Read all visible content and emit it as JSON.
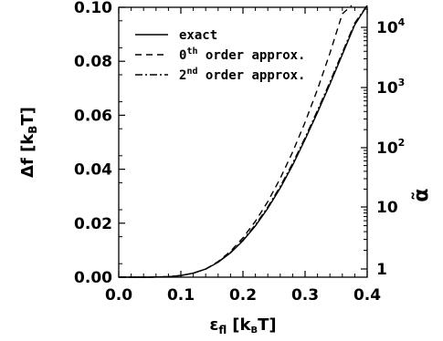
{
  "chart_data": {
    "type": "line",
    "x_axis": {
      "label": {
        "main": "ε",
        "sub": "fl",
        "rest": "[k",
        "rest_sub": "B",
        "rest_end": "T]"
      },
      "range": [
        0.0,
        0.4
      ],
      "ticks": [
        0.0,
        0.1,
        0.2,
        0.3,
        0.4
      ],
      "tick_labels": [
        "0.0",
        "0.1",
        "0.2",
        "0.3",
        "0.4"
      ]
    },
    "y_axis_left": {
      "label": {
        "main": "Δf [k",
        "sub": "B",
        "rest": "T]"
      },
      "range": [
        0.0,
        0.1
      ],
      "ticks": [
        0.0,
        0.02,
        0.04,
        0.06,
        0.08,
        0.1
      ],
      "tick_labels": [
        "0.00",
        "0.02",
        "0.04",
        "0.06",
        "0.08",
        "0.10"
      ]
    },
    "y_axis_right": {
      "label": "α̃",
      "scale": "log",
      "ticks": [
        {
          "value": 1,
          "base": "1",
          "exp": ""
        },
        {
          "value": 10,
          "base": "10",
          "exp": ""
        },
        {
          "value": 100,
          "base": "10",
          "exp": "2"
        },
        {
          "value": 1000,
          "base": "10",
          "exp": "3"
        },
        {
          "value": 10000,
          "base": "10",
          "exp": "4"
        }
      ]
    },
    "legend": {
      "position": "top-left",
      "entries": [
        {
          "text": "exact",
          "sup": "",
          "rest": "",
          "dash": "solid"
        },
        {
          "text": "0",
          "sup": "th",
          "rest": " order approx.",
          "dash": "dashed"
        },
        {
          "text": "2",
          "sup": "nd",
          "rest": " order approx.",
          "dash": "dashdot"
        }
      ]
    },
    "series": [
      {
        "dash": "solid",
        "x": [
          0.0,
          0.05,
          0.08,
          0.1,
          0.12,
          0.14,
          0.16,
          0.18,
          0.2,
          0.22,
          0.24,
          0.26,
          0.28,
          0.3,
          0.32,
          0.34,
          0.36,
          0.38,
          0.4
        ],
        "y": [
          0.0,
          0.0,
          0.0002,
          0.0006,
          0.0015,
          0.003,
          0.0055,
          0.009,
          0.0135,
          0.019,
          0.0255,
          0.033,
          0.0415,
          0.051,
          0.061,
          0.0715,
          0.0825,
          0.0935,
          0.1045
        ]
      },
      {
        "dash": "dashed",
        "x": [
          0.0,
          0.05,
          0.08,
          0.1,
          0.12,
          0.14,
          0.16,
          0.18,
          0.2,
          0.22,
          0.24,
          0.26,
          0.28,
          0.3,
          0.32,
          0.34,
          0.36,
          0.375
        ],
        "y": [
          0.0,
          0.0,
          0.0002,
          0.0006,
          0.0015,
          0.003,
          0.0058,
          0.0096,
          0.0146,
          0.0207,
          0.028,
          0.0366,
          0.0464,
          0.0574,
          0.0696,
          0.083,
          0.0976,
          0.1035
        ]
      },
      {
        "dash": "dashdot",
        "x": [
          0.0,
          0.05,
          0.08,
          0.1,
          0.12,
          0.14,
          0.16,
          0.18,
          0.2,
          0.22,
          0.24,
          0.26,
          0.28,
          0.3,
          0.32,
          0.34,
          0.36,
          0.38,
          0.4
        ],
        "y": [
          0.0,
          0.0,
          0.0002,
          0.0006,
          0.0015,
          0.003,
          0.0056,
          0.0092,
          0.0138,
          0.0194,
          0.026,
          0.0336,
          0.0422,
          0.0517,
          0.0618,
          0.0723,
          0.0832,
          0.0942,
          0.1052
        ]
      }
    ]
  }
}
